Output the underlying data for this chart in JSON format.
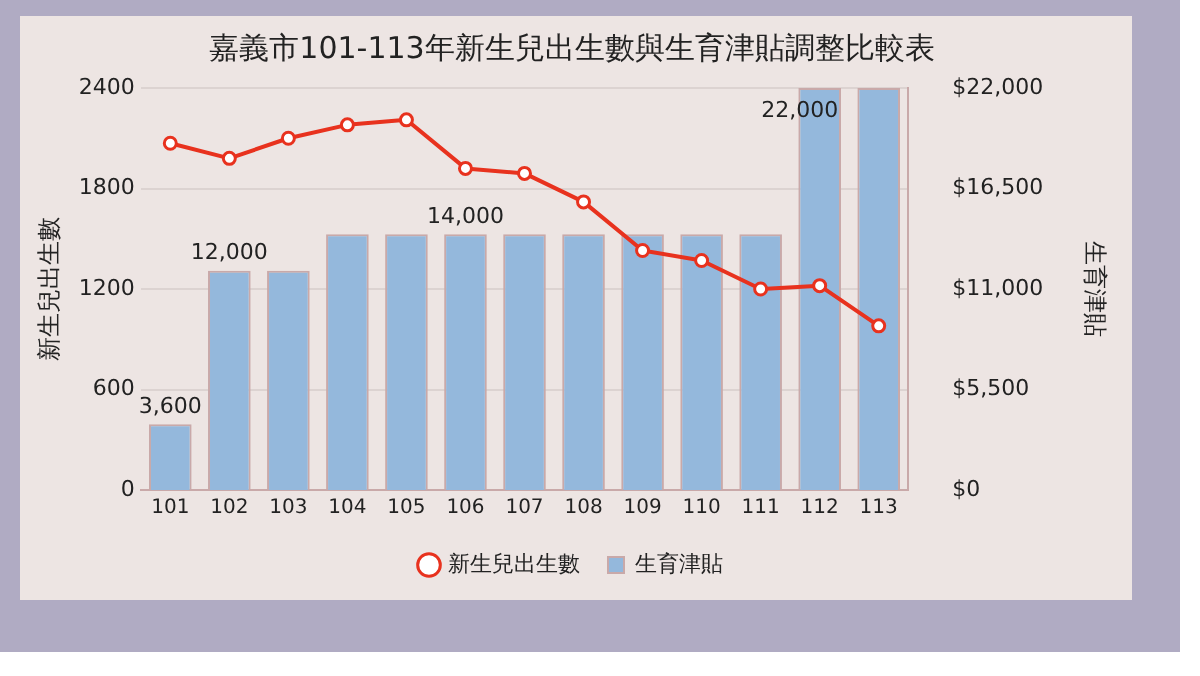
{
  "chart_data": {
    "type": "bar",
    "title": "嘉義市101-113年新生兒出生數與生育津貼調整比較表",
    "ylabel": "新生兒出生數",
    "y2label": "生育津貼",
    "categories": [
      "101",
      "102",
      "103",
      "104",
      "105",
      "106",
      "107",
      "108",
      "109",
      "110",
      "111",
      "112",
      "113"
    ],
    "series": [
      {
        "name": "新生兒出生數",
        "type": "line",
        "color": "#e8321e",
        "values": [
          2070,
          1980,
          2100,
          2180,
          2210,
          1920,
          1890,
          1720,
          1430,
          1370,
          1200,
          1220,
          980
        ]
      },
      {
        "name": "生育津貼",
        "axis": "y2",
        "color": "#94b8dc",
        "values": [
          3600,
          12000,
          12000,
          14000,
          14000,
          14000,
          14000,
          14000,
          14000,
          14000,
          14000,
          22000,
          22000
        ],
        "value_labels": [
          "3,600",
          "12,000",
          null,
          null,
          null,
          "14,000",
          null,
          null,
          null,
          null,
          null,
          "22,000",
          null
        ]
      }
    ],
    "ylim": [
      0,
      2400
    ],
    "yticks": [
      0,
      600,
      1200,
      1800,
      2400
    ],
    "y2lim": [
      0,
      22000
    ],
    "y2ticks": [
      {
        "value": 0,
        "label": "$0"
      },
      {
        "value": 5500,
        "label": "$5,500"
      },
      {
        "value": 11000,
        "label": "$11,000"
      },
      {
        "value": 16500,
        "label": "$16,500"
      },
      {
        "value": 22000,
        "label": "$22,000"
      }
    ],
    "grid": "y",
    "legend": "bottom",
    "marker": "circle"
  }
}
